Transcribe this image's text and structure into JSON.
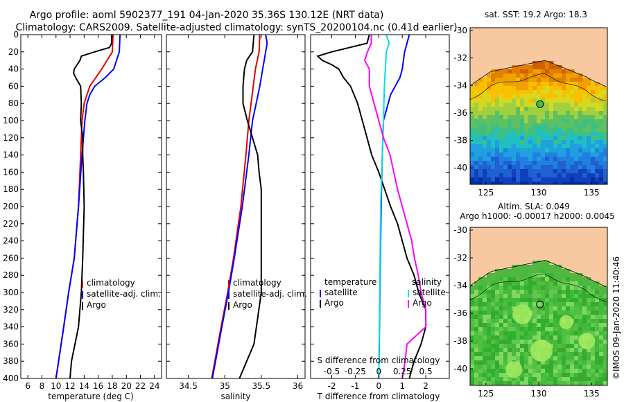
{
  "title": {
    "line1": "Argo profile: aoml 5902377_191 04-Jan-2020 35.36S 130.12E (NRT data)",
    "line2": "Climatology: CARS2009. Satellite-adjusted climatology: synTS_20200104.nc (0.41d earlier)"
  },
  "chart_data": [
    {
      "type": "line",
      "name": "temperature",
      "xlabel": "temperature (deg C)",
      "ylabel": "depth",
      "xlim": [
        5,
        25
      ],
      "ylim": [
        400,
        0
      ],
      "xticks": [
        "6",
        "8",
        "10",
        "12",
        "14",
        "16",
        "18",
        "20",
        "22",
        "24"
      ],
      "xtick_values": [
        6,
        8,
        10,
        12,
        14,
        16,
        18,
        20,
        22,
        24
      ],
      "yticks": [
        "0",
        "20",
        "40",
        "60",
        "80",
        "100",
        "120",
        "140",
        "160",
        "180",
        "200",
        "220",
        "240",
        "260",
        "280",
        "300",
        "320",
        "340",
        "360",
        "380",
        "400"
      ],
      "legend": [
        "climatology",
        "satellite-adj. clim.",
        "Argo"
      ],
      "legend_position": "lower-right",
      "series": [
        {
          "name": "climatology",
          "color": "#e00000",
          "depth": [
            0,
            20,
            40,
            60,
            80,
            100,
            140,
            200,
            260,
            300,
            340,
            400
          ],
          "values": [
            18.1,
            18.0,
            16.5,
            14.8,
            14.0,
            13.7,
            13.5,
            13.2,
            12.6,
            11.8,
            11.1,
            10.0
          ]
        },
        {
          "name": "satellite-adj. clim.",
          "color": "#0000ff",
          "depth": [
            0,
            20,
            40,
            50,
            60,
            70,
            80,
            100,
            140,
            200,
            260,
            300,
            340,
            400
          ],
          "values": [
            19.1,
            19.0,
            18.2,
            17.0,
            15.5,
            14.8,
            14.4,
            14.1,
            13.7,
            13.2,
            12.6,
            11.8,
            11.1,
            10.0
          ]
        },
        {
          "name": "Argo",
          "color": "#000000",
          "depth": [
            0,
            10,
            15,
            20,
            25,
            30,
            35,
            40,
            45,
            50,
            60,
            80,
            100,
            120,
            140,
            160,
            200,
            260,
            300,
            340,
            380,
            400
          ],
          "values": [
            17.9,
            17.9,
            17.6,
            15.5,
            13.6,
            13.4,
            13.0,
            12.6,
            12.5,
            12.8,
            13.5,
            13.6,
            13.5,
            13.8,
            13.8,
            13.9,
            14.0,
            13.8,
            13.6,
            13.2,
            12.2,
            12.0
          ]
        }
      ]
    },
    {
      "type": "line",
      "name": "salinity",
      "xlabel": "salinity",
      "xlim": [
        34.2,
        36.1
      ],
      "ylim": [
        400,
        0
      ],
      "xticks": [
        "34.5",
        "35",
        "35.5",
        "36"
      ],
      "xtick_values": [
        34.5,
        35,
        35.5,
        36
      ],
      "legend": [
        "climatology",
        "satellite-adj. clim.",
        "Argo"
      ],
      "legend_position": "lower-right",
      "series": [
        {
          "name": "climatology",
          "color": "#e00000",
          "depth": [
            0,
            20,
            40,
            60,
            80,
            100,
            140,
            200,
            260,
            300,
            340,
            400
          ],
          "values": [
            35.48,
            35.47,
            35.42,
            35.39,
            35.36,
            35.33,
            35.29,
            35.22,
            35.12,
            35.04,
            34.95,
            34.82
          ]
        },
        {
          "name": "satellite-adj. clim.",
          "color": "#0000ff",
          "depth": [
            0,
            10,
            20,
            40,
            60,
            80,
            100,
            140,
            200,
            260,
            300,
            340,
            400
          ],
          "values": [
            35.56,
            35.58,
            35.56,
            35.52,
            35.48,
            35.43,
            35.38,
            35.33,
            35.24,
            35.13,
            35.05,
            34.96,
            34.83
          ]
        },
        {
          "name": "Argo",
          "color": "#000000",
          "depth": [
            0,
            20,
            30,
            40,
            60,
            80,
            100,
            120,
            140,
            160,
            180,
            200,
            240,
            280,
            300,
            330,
            360,
            380,
            400
          ],
          "values": [
            35.4,
            35.38,
            35.3,
            35.27,
            35.25,
            35.25,
            35.31,
            35.38,
            35.45,
            35.47,
            35.5,
            35.5,
            35.5,
            35.5,
            35.5,
            35.45,
            35.4,
            35.3,
            35.2
          ]
        }
      ]
    },
    {
      "type": "line",
      "name": "differences",
      "xlabel": "T difference from climatology",
      "xlabel_top": "S difference from climatology",
      "xlim": [
        -2.9,
        3.0
      ],
      "ylim": [
        400,
        0
      ],
      "xticks": [
        "-2",
        "-1",
        "0",
        "1",
        "2"
      ],
      "xtick_values": [
        -2,
        -1,
        0,
        1,
        2
      ],
      "sticks": [
        "-0.5",
        "-0.25",
        "0",
        "0.25",
        "0.5"
      ],
      "stick_values": [
        -0.5,
        -0.25,
        0,
        0.25,
        0.5
      ],
      "legend_temperature": {
        "header": "temperature",
        "items": [
          "satellite",
          "Argo"
        ]
      },
      "legend_salinity": {
        "header": "salinity",
        "items": [
          "satellite",
          "Argo"
        ]
      },
      "series": [
        {
          "name": "T satellite",
          "color": "#0000ff",
          "depth": [
            0,
            20,
            40,
            50,
            60,
            70,
            80,
            100,
            140,
            200,
            300,
            400
          ],
          "values": [
            1.3,
            1.1,
            1.0,
            0.9,
            0.7,
            0.5,
            0.4,
            0.2,
            0.15,
            0.1,
            0.05,
            0.0
          ]
        },
        {
          "name": "T Argo",
          "color": "#000000",
          "depth": [
            0,
            10,
            20,
            25,
            30,
            35,
            40,
            50,
            60,
            80,
            100,
            120,
            140,
            160,
            180,
            200,
            220,
            240,
            260,
            280,
            300,
            320,
            340,
            360,
            380,
            400
          ],
          "values": [
            -0.4,
            -0.5,
            -2.0,
            -2.6,
            -2.4,
            -2.0,
            -1.7,
            -1.5,
            -1.2,
            -0.9,
            -0.7,
            -0.5,
            -0.3,
            0.0,
            0.25,
            0.5,
            0.8,
            1.0,
            1.2,
            1.5,
            1.7,
            2.0,
            2.0,
            1.8,
            1.5,
            1.3
          ]
        },
        {
          "name": "S satellite",
          "color": "#00e0e0",
          "depth": [
            0,
            10,
            20,
            60,
            100,
            200,
            300,
            400
          ],
          "values": [
            0.08,
            0.11,
            0.08,
            0.06,
            0.05,
            0.02,
            0.01,
            0.0
          ]
        },
        {
          "name": "S Argo",
          "color": "#ff00ff",
          "depth": [
            0,
            10,
            20,
            30,
            40,
            60,
            80,
            100,
            120,
            140,
            160,
            180,
            200,
            220,
            240,
            260,
            280,
            300,
            320,
            340,
            360,
            380,
            400
          ],
          "values": [
            -0.08,
            -0.08,
            -0.12,
            -0.15,
            -0.1,
            -0.1,
            -0.05,
            0.0,
            0.05,
            0.12,
            0.16,
            0.2,
            0.25,
            0.3,
            0.35,
            0.38,
            0.42,
            0.45,
            0.5,
            0.5,
            0.3,
            0.28,
            0.25
          ]
        }
      ]
    },
    {
      "type": "heatmap",
      "name": "sst-map",
      "title": "sat. SST: 19.2 Argo: 18.3",
      "xticks": [
        "125",
        "130",
        "135"
      ],
      "xtick_values": [
        125,
        130,
        135
      ],
      "yticks": [
        "-30",
        "-32",
        "-34",
        "-36",
        "-38",
        "-40"
      ],
      "ytick_values": [
        -30,
        -32,
        -34,
        -36,
        -38,
        -40
      ],
      "lon_range": [
        123.5,
        136.5
      ],
      "lat_range": [
        -41.2,
        -29.8
      ],
      "marker": {
        "lon": 130.12,
        "lat": -35.36
      }
    },
    {
      "type": "heatmap",
      "name": "sla-map",
      "title": "Altim. SLA: 0.049",
      "subtitle": "Argo h1000: -0.00017 h2000: 0.0045",
      "xticks": [
        "125",
        "130",
        "135"
      ],
      "xtick_values": [
        125,
        130,
        135
      ],
      "yticks": [
        "-30",
        "-32",
        "-34",
        "-36",
        "-38",
        "-40"
      ],
      "ytick_values": [
        -30,
        -32,
        -34,
        -36,
        -38,
        -40
      ],
      "lon_range": [
        123.5,
        136.5
      ],
      "lat_range": [
        -41.2,
        -29.8
      ],
      "marker": {
        "lon": 130.12,
        "lat": -35.36
      }
    }
  ],
  "credit": "©IMOS 09-Jan-2020 11:40:46"
}
